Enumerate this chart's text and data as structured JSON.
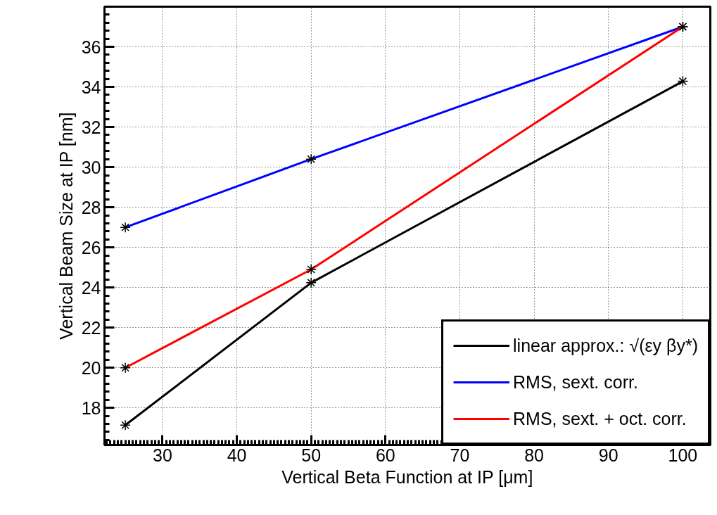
{
  "chart_data": {
    "type": "line",
    "xlabel": "Vertical Beta Function at IP [μm]",
    "ylabel": "Vertical Beam Size at IP [nm]",
    "x": [
      25,
      50,
      100
    ],
    "series": [
      {
        "name": "linear approx.: √(εy βy*)",
        "color": "#000000",
        "values": [
          17.14,
          24.24,
          34.28
        ]
      },
      {
        "name": "RMS, sext. corr.",
        "color": "#0000ff",
        "values": [
          27.0,
          30.4,
          37.0
        ]
      },
      {
        "name": "RMS, sext. + oct. corr.",
        "color": "#ff0000",
        "values": [
          20.0,
          24.9,
          37.0
        ]
      }
    ],
    "xlim": [
      22.2,
      103.7
    ],
    "ylim": [
      16.15,
      38
    ],
    "xticks": [
      30,
      40,
      50,
      60,
      70,
      80,
      90,
      100
    ],
    "yticks": [
      18,
      20,
      22,
      24,
      26,
      28,
      30,
      32,
      34,
      36
    ],
    "grid": true,
    "legend": "bottom right",
    "marker": "cross",
    "line_style": "solid"
  }
}
